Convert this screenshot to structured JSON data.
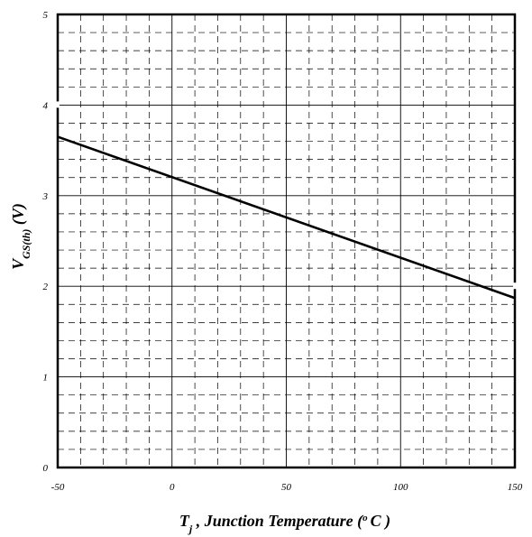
{
  "chart_data": {
    "type": "line",
    "x_ticks": [
      "-50",
      "0",
      "50",
      "100",
      "150"
    ],
    "y_ticks": [
      "0",
      "1",
      "2",
      "3",
      "4",
      "5"
    ],
    "xlim": [
      -50,
      150
    ],
    "ylim": [
      0,
      5
    ],
    "grid": true,
    "series": [
      {
        "x": [
          -50,
          150
        ],
        "y": [
          3.65,
          1.87
        ]
      }
    ],
    "ylabel": {
      "main": "V",
      "sub": "GS(th)",
      "unit": " (V)"
    },
    "xlabel": {
      "main": "T",
      "sub": "j",
      "rest": " , Junction Temperature (",
      "sup": "o",
      "unit": "C )"
    },
    "colors": {
      "line": "#000000",
      "grid": "#000000",
      "frame": "#000000"
    }
  }
}
